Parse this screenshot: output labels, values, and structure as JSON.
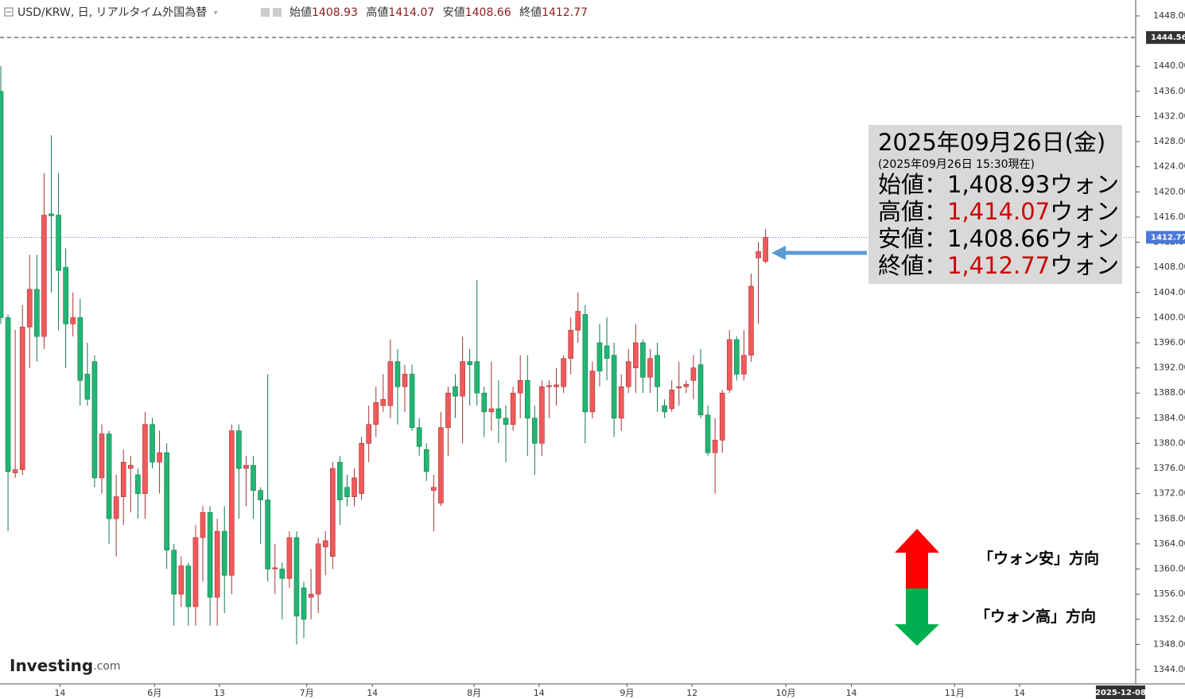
{
  "header": {
    "symbol": "USD/KRW, 日, リアルタイム外国為替",
    "ohlc": [
      {
        "label": "始値",
        "value": 1408.93
      },
      {
        "label": "高値",
        "value": 1414.07
      },
      {
        "label": "安値",
        "value": 1408.66
      },
      {
        "label": "終値",
        "value": 1412.77
      }
    ]
  },
  "chart_data": {
    "type": "candlestick",
    "up_color": "#f05a5a",
    "down_color": "#22b573",
    "xlim": [
      -0.11,
      157.3
    ],
    "ylim": [
      1341.72,
      1450.53
    ],
    "grid": false,
    "open": [
      1436,
      1400,
      1375.3,
      1375.8,
      1398.5,
      1404.5,
      1397,
      1416.5,
      1416.3,
      1408,
      1399,
      1400,
      1391,
      1393,
      1374.5,
      1381.5,
      1368,
      1371.5,
      1376,
      1375,
      1372,
      1383,
      1377,
      1378.5,
      1363,
      1356,
      1360.5,
      1354,
      1365,
      1369,
      1355.5,
      1366,
      1359,
      1382,
      1376,
      1376.5,
      1372.5,
      1371,
      1360,
      1360,
      1358.5,
      1365,
      1357,
      1355.5,
      1356,
      1363.5,
      1362,
      1377,
      1373,
      1371.5,
      1372,
      1380,
      1383,
      1386,
      1386,
      1393,
      1389,
      1391,
      1382.5,
      1379,
      1372.5,
      1370.5,
      1382.5,
      1389,
      1387.5,
      1393,
      1393,
      1388,
      1385,
      1385.5,
      1384,
      1383,
      1388,
      1390,
      1384,
      1380,
      1389,
      1389,
      1389,
      1393.5,
      1398,
      1400.5,
      1385,
      1396,
      1395.5,
      1394,
      1384,
      1389,
      1392,
      1396,
      1390.5,
      1394,
      1386,
      1385.5,
      1388.8,
      1389,
      1390,
      1392.5,
      1384.5,
      1378.5,
      1380.5,
      1388.5,
      1396.5,
      1391,
      1394,
      1409.5,
      1408.93
    ],
    "high": [
      1440,
      1400.5,
      1398,
      1402,
      1410,
      1410,
      1423,
      1429,
      1423,
      1411,
      1404,
      1403,
      1396,
      1394,
      1383,
      1382,
      1375,
      1379,
      1378,
      1376,
      1385,
      1384,
      1382,
      1380,
      1364,
      1362,
      1361,
      1367,
      1370,
      1370,
      1368,
      1370,
      1383,
      1383,
      1378,
      1378,
      1373,
      1391,
      1364,
      1361,
      1366,
      1366,
      1358,
      1360,
      1365,
      1366,
      1377,
      1378,
      1375,
      1376,
      1381,
      1386,
      1389,
      1391,
      1396.5,
      1395,
      1392.5,
      1392.5,
      1384,
      1380,
      1375,
      1385,
      1389,
      1391,
      1397,
      1395,
      1406,
      1389,
      1393,
      1390,
      1386,
      1389,
      1394,
      1394,
      1386,
      1390,
      1390,
      1392,
      1394,
      1400,
      1404,
      1402,
      1393,
      1399,
      1400,
      1396,
      1391,
      1395,
      1399,
      1396.5,
      1395,
      1396,
      1387,
      1390,
      1393,
      1390,
      1394,
      1395,
      1386,
      1384,
      1388.5,
      1398,
      1397,
      1398,
      1407,
      1412,
      1414.07
    ],
    "low": [
      1399,
      1366,
      1374.5,
      1375,
      1392,
      1393,
      1395,
      1404,
      1398,
      1392,
      1397,
      1386,
      1386,
      1373,
      1372,
      1364,
      1362,
      1367,
      1369,
      1368,
      1368,
      1376,
      1372,
      1360,
      1351,
      1354,
      1351,
      1351,
      1358,
      1351,
      1351,
      1353,
      1356,
      1368,
      1370,
      1368,
      1364,
      1358,
      1356,
      1352,
      1357,
      1348,
      1349,
      1352,
      1353,
      1359,
      1360,
      1367,
      1370,
      1370,
      1371,
      1377,
      1381,
      1385,
      1384,
      1383,
      1385,
      1382,
      1378,
      1374,
      1366,
      1370,
      1378,
      1384,
      1380,
      1386,
      1386,
      1381,
      1382,
      1380,
      1377,
      1382,
      1384,
      1378,
      1375,
      1378,
      1384,
      1386,
      1388,
      1391,
      1396,
      1380,
      1384,
      1389,
      1390,
      1381,
      1382,
      1388,
      1388,
      1388,
      1388,
      1385,
      1384,
      1385,
      1386,
      1388,
      1387,
      1384,
      1378,
      1372,
      1378.5,
      1388,
      1390,
      1390,
      1393,
      1399,
      1408.66
    ],
    "close": [
      1400,
      1375.5,
      1375.8,
      1398.5,
      1404.5,
      1397,
      1416.3,
      1416.2,
      1407.5,
      1399,
      1400,
      1390,
      1387,
      1374.5,
      1381.5,
      1368,
      1371.5,
      1377,
      1376.5,
      1372,
      1383,
      1377,
      1378.5,
      1363,
      1356,
      1360.5,
      1354,
      1365,
      1369,
      1355.5,
      1366,
      1359,
      1382,
      1376,
      1376.5,
      1372.5,
      1371,
      1360,
      1360.2,
      1358.5,
      1365,
      1352.5,
      1352,
      1356,
      1364,
      1364.5,
      1376,
      1371,
      1371.5,
      1374.5,
      1380,
      1383,
      1386.5,
      1387,
      1393,
      1389,
      1391,
      1382.5,
      1379.5,
      1375.5,
      1373,
      1382.5,
      1388,
      1387.5,
      1393,
      1392.5,
      1388,
      1385,
      1385.5,
      1384,
      1383,
      1388,
      1390,
      1384,
      1380,
      1389,
      1389.2,
      1389.3,
      1393.5,
      1398,
      1401,
      1385,
      1391.5,
      1391.5,
      1393.5,
      1384,
      1389,
      1393,
      1396,
      1390.5,
      1393.5,
      1389,
      1385,
      1388.5,
      1389,
      1389.4,
      1392,
      1384.5,
      1378.5,
      1380.5,
      1388,
      1396.5,
      1391,
      1394,
      1405,
      1410.5,
      1412.77
    ],
    "yticks": [
      {
        "value": 1344,
        "label": "1344.00"
      },
      {
        "value": 1348,
        "label": "1348.00"
      },
      {
        "value": 1352,
        "label": "1352.00"
      },
      {
        "value": 1356,
        "label": "1356.00"
      },
      {
        "value": 1360,
        "label": "1360.00"
      },
      {
        "value": 1364,
        "label": "1364.00"
      },
      {
        "value": 1368,
        "label": "1368.00"
      },
      {
        "value": 1372,
        "label": "1372.00"
      },
      {
        "value": 1376,
        "label": "1376.00"
      },
      {
        "value": 1380,
        "label": "1380.00"
      },
      {
        "value": 1384,
        "label": "1384.00"
      },
      {
        "value": 1388,
        "label": "1388.00"
      },
      {
        "value": 1392,
        "label": "1392.00"
      },
      {
        "value": 1396,
        "label": "1396.00"
      },
      {
        "value": 1400,
        "label": "1400.00"
      },
      {
        "value": 1404,
        "label": "1404.00"
      },
      {
        "value": 1408,
        "label": "1408.00"
      },
      {
        "value": 1412,
        "label": "1412.00"
      },
      {
        "value": 1416,
        "label": "1416.00"
      },
      {
        "value": 1420,
        "label": "1420.00"
      },
      {
        "value": 1424,
        "label": "1424.00"
      },
      {
        "value": 1428,
        "label": "1428.00"
      },
      {
        "value": 1432,
        "label": "1432.00"
      },
      {
        "value": 1436,
        "label": "1436.00"
      },
      {
        "value": 1440,
        "label": "1440.00"
      },
      {
        "value": 1448,
        "label": "1448.00"
      }
    ],
    "xticks": [
      {
        "value": 8.2,
        "label": "14"
      },
      {
        "value": 21.3,
        "label": "6月"
      },
      {
        "value": 30.3,
        "label": "13"
      },
      {
        "value": 42.4,
        "label": "7月"
      },
      {
        "value": 51.5,
        "label": "14"
      },
      {
        "value": 65.6,
        "label": "8月"
      },
      {
        "value": 74.6,
        "label": "14"
      },
      {
        "value": 86.8,
        "label": "9月"
      },
      {
        "value": 95.8,
        "label": "12"
      },
      {
        "value": 108.8,
        "label": "10月"
      },
      {
        "value": 117.9,
        "label": "14"
      },
      {
        "value": 132.2,
        "label": "11月"
      },
      {
        "value": 141.2,
        "label": "14"
      }
    ],
    "x_marker": {
      "value": 155.2,
      "label": "2025-12-08"
    },
    "price_lines": [
      {
        "value": 1444.56,
        "color": "#333333",
        "style": "dashed"
      },
      {
        "value": 1412.77,
        "color": "#4a78d8",
        "style": "dotted"
      }
    ]
  },
  "annotation": {
    "date": "2025年09月26日(金)",
    "asof": "(2025年09月26日 15:30現在)",
    "highlight_color": "#cc0000",
    "lines": [
      {
        "label": "始値：",
        "value": "1,408.93",
        "unit": "ウォン",
        "highlight": false
      },
      {
        "label": "高値：",
        "value": "1,414.07",
        "unit": "ウォン",
        "highlight": true
      },
      {
        "label": "安値：",
        "value": "1,408.66",
        "unit": "ウォン",
        "highlight": false
      },
      {
        "label": "終値：",
        "value": "1,412.77",
        "unit": "ウォン",
        "highlight": true
      }
    ]
  },
  "direction": {
    "up": "「ウォン安」方向",
    "down": "「ウォン高」方向"
  },
  "logo": {
    "brand": "Investing",
    "suffix": ".com"
  }
}
